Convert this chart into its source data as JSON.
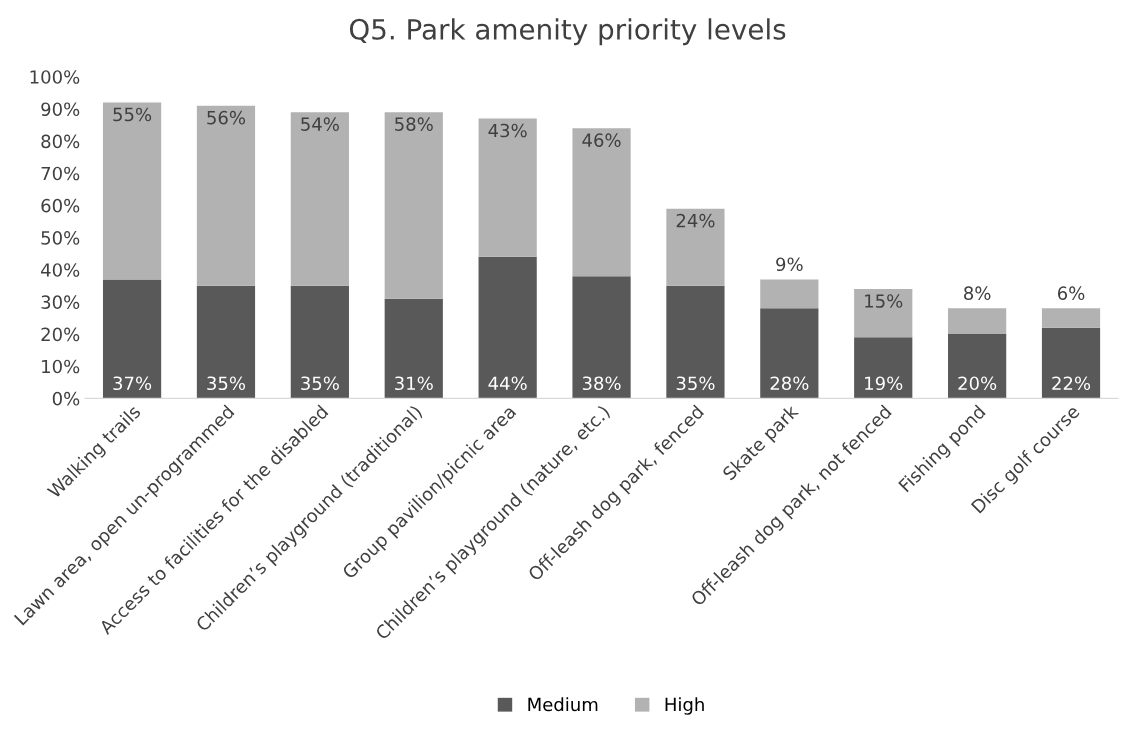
{
  "chart_data": {
    "type": "bar",
    "title": "Q5. Park amenity priority levels",
    "stacked": true,
    "categories": [
      "Walking trails",
      "Lawn area, open un-programmed",
      "Access to facilities for the disabled",
      "Children’s playground (traditional)",
      "Group pavilion/picnic area",
      "Children’s playground (nature, etc.)",
      "Off-leash dog park, fenced",
      "Skate park",
      "Off-leash dog park, not fenced",
      "Fishing pond",
      "Disc golf course"
    ],
    "series": [
      {
        "name": "Medium",
        "color": "#595959",
        "values": [
          37,
          35,
          35,
          31,
          44,
          38,
          35,
          28,
          19,
          20,
          22
        ],
        "value_labels": [
          "37%",
          "35%",
          "35%",
          "31%",
          "44%",
          "38%",
          "35%",
          "28%",
          "19%",
          "20%",
          "22%"
        ]
      },
      {
        "name": "High",
        "color": "#b2b2b2",
        "values": [
          55,
          56,
          54,
          58,
          43,
          46,
          24,
          9,
          15,
          8,
          6
        ],
        "value_labels": [
          "55%",
          "56%",
          "54%",
          "58%",
          "43%",
          "46%",
          "24%",
          "9%",
          "15%",
          "8%",
          "6%"
        ]
      }
    ],
    "ylim": [
      0,
      100
    ],
    "yticks": [
      {
        "value": 0,
        "label": "0%"
      },
      {
        "value": 10,
        "label": "10%"
      },
      {
        "value": 20,
        "label": "20%"
      },
      {
        "value": 30,
        "label": "30%"
      },
      {
        "value": 40,
        "label": "40%"
      },
      {
        "value": 50,
        "label": "50%"
      },
      {
        "value": 60,
        "label": "60%"
      },
      {
        "value": 70,
        "label": "70%"
      },
      {
        "value": 80,
        "label": "80%"
      },
      {
        "value": 90,
        "label": "90%"
      },
      {
        "value": 100,
        "label": "100%"
      }
    ],
    "grid": false,
    "legend": "bottom"
  }
}
